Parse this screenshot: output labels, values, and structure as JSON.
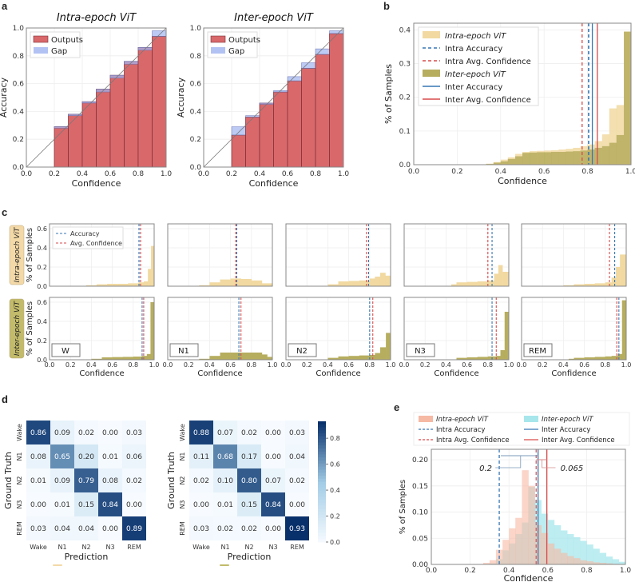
{
  "panels": {
    "a": {
      "letter": "a"
    },
    "b": {
      "letter": "b"
    },
    "c": {
      "letter": "c"
    },
    "d": {
      "letter": "d"
    },
    "e": {
      "letter": "e"
    }
  },
  "colors": {
    "outputs": "#d9686b",
    "gap": "#9fb3f0",
    "intra_fill": "#f1d9a1",
    "inter_fill": "#b6ad5f",
    "blue": "#3777b3",
    "red": "#d94a4a",
    "e_intra": "#f6b9a4",
    "e_inter": "#a7e7ec",
    "tag_intra": "#f3d9a8",
    "tag_inter": "#c2bb6b"
  },
  "chart_data": [
    {
      "id": "a-intra",
      "type": "bar",
      "title": "Intra-epoch ViT",
      "xlabel": "Confidence",
      "ylabel": "Accuracy",
      "xlim": [
        0,
        1
      ],
      "ylim": [
        0,
        1
      ],
      "xticks": [
        "0.0",
        "0.2",
        "0.4",
        "0.6",
        "0.8",
        "1.0"
      ],
      "yticks": [
        "0.0",
        "0.2",
        "0.4",
        "0.6",
        "0.8",
        "1.0"
      ],
      "legend": [
        "Outputs",
        "Gap"
      ],
      "bin_starts": [
        0.2,
        0.3,
        0.4,
        0.5,
        0.6,
        0.7,
        0.8,
        0.9
      ],
      "outputs": [
        0.29,
        0.38,
        0.47,
        0.56,
        0.66,
        0.76,
        0.86,
        0.94
      ],
      "gap_top": [
        0.28,
        0.37,
        0.46,
        0.54,
        0.64,
        0.74,
        0.84,
        0.98
      ],
      "grid": true
    },
    {
      "id": "a-inter",
      "type": "bar",
      "title": "Inter-epoch ViT",
      "xlabel": "Confidence",
      "ylabel": "Accuracy",
      "xlim": [
        0,
        1
      ],
      "ylim": [
        0,
        1
      ],
      "xticks": [
        "0.0",
        "0.2",
        "0.4",
        "0.6",
        "0.8",
        "1.0"
      ],
      "yticks": [
        "0.0",
        "0.2",
        "0.4",
        "0.6",
        "0.8",
        "1.0"
      ],
      "legend": [
        "Outputs",
        "Gap"
      ],
      "bin_starts": [
        0.2,
        0.3,
        0.4,
        0.5,
        0.6,
        0.7,
        0.8,
        0.9
      ],
      "outputs": [
        0.23,
        0.36,
        0.46,
        0.54,
        0.62,
        0.71,
        0.81,
        0.96
      ],
      "gap_top": [
        0.29,
        0.37,
        0.46,
        0.55,
        0.65,
        0.75,
        0.85,
        0.98
      ],
      "grid": true
    },
    {
      "id": "b",
      "type": "bar",
      "xlabel": "Confidence",
      "ylabel": "% of Samples",
      "xlim": [
        0,
        1
      ],
      "ylim": [
        0,
        0.42
      ],
      "xticks": [
        "0.0",
        "0.2",
        "0.4",
        "0.6",
        "0.8",
        "1.0"
      ],
      "yticks": [
        "0.0",
        "0.1",
        "0.2",
        "0.3",
        "0.4"
      ],
      "legend": [
        "Intra-epoch ViT",
        "Intra Accuracy",
        "Intra Avg. Confidence",
        "Inter-epoch ViT",
        "Inter Accuracy",
        "Inter Avg. Confidence"
      ],
      "bin_width": 0.0333,
      "bin_starts": [
        0.333,
        0.367,
        0.4,
        0.433,
        0.467,
        0.5,
        0.533,
        0.567,
        0.6,
        0.633,
        0.667,
        0.7,
        0.733,
        0.767,
        0.8,
        0.833,
        0.867,
        0.9,
        0.933,
        0.967
      ],
      "intra": [
        0.003,
        0.008,
        0.015,
        0.022,
        0.032,
        0.038,
        0.04,
        0.041,
        0.042,
        0.043,
        0.045,
        0.047,
        0.05,
        0.055,
        0.06,
        0.07,
        0.09,
        0.167,
        0.177,
        0.395
      ],
      "inter": [
        0.002,
        0.006,
        0.01,
        0.017,
        0.025,
        0.035,
        0.036,
        0.037,
        0.037,
        0.038,
        0.038,
        0.039,
        0.04,
        0.042,
        0.045,
        0.05,
        0.055,
        0.065,
        0.088,
        0.395
      ],
      "lines": {
        "intra_accuracy": 0.805,
        "intra_avg_conf": 0.775,
        "inter_accuracy": 0.822,
        "inter_avg_conf": 0.845
      },
      "grid": true
    },
    {
      "id": "c",
      "type": "bar",
      "xlabel": "Confidence",
      "ylabel": "% of Samples",
      "row_labels": [
        "Intra-epoch ViT",
        "Inter-epoch ViT"
      ],
      "legend": [
        "Accuracy",
        "Avg. Confidence"
      ],
      "xticks": [
        "0.0",
        "0.2",
        "0.4",
        "0.6",
        "0.8",
        "1.0"
      ],
      "yticks": [
        "0.0",
        "0.2",
        "0.4",
        "0.6"
      ],
      "ylim": [
        0,
        0.65
      ],
      "stages": [
        {
          "name": "W",
          "intra": {
            "acc": 0.855,
            "conf": 0.87,
            "hist": [
              [
                0.35,
                0.01
              ],
              [
                0.45,
                0.02
              ],
              [
                0.55,
                0.025
              ],
              [
                0.65,
                0.025
              ],
              [
                0.75,
                0.03
              ],
              [
                0.85,
                0.04
              ],
              [
                0.9,
                0.05
              ],
              [
                0.94,
                0.18
              ],
              [
                0.97,
                0.42
              ]
            ]
          },
          "inter": {
            "acc": 0.885,
            "conf": 0.9,
            "hist": [
              [
                0.4,
                0.01
              ],
              [
                0.5,
                0.025
              ],
              [
                0.6,
                0.028
              ],
              [
                0.7,
                0.03
              ],
              [
                0.8,
                0.033
              ],
              [
                0.88,
                0.04
              ],
              [
                0.93,
                0.06
              ],
              [
                0.965,
                0.6
              ]
            ]
          }
        },
        {
          "name": "N1",
          "intra": {
            "acc": 0.66,
            "conf": 0.65,
            "hist": [
              [
                0.3,
                0.01
              ],
              [
                0.4,
                0.04
              ],
              [
                0.5,
                0.07
              ],
              [
                0.6,
                0.08
              ],
              [
                0.7,
                0.075
              ],
              [
                0.8,
                0.06
              ],
              [
                0.9,
                0.03
              ]
            ]
          },
          "inter": {
            "acc": 0.68,
            "conf": 0.7,
            "hist": [
              [
                0.3,
                0.01
              ],
              [
                0.4,
                0.04
              ],
              [
                0.5,
                0.075
              ],
              [
                0.6,
                0.075
              ],
              [
                0.7,
                0.075
              ],
              [
                0.8,
                0.075
              ],
              [
                0.9,
                0.055
              ],
              [
                0.95,
                0.03
              ]
            ]
          }
        },
        {
          "name": "N2",
          "intra": {
            "acc": 0.79,
            "conf": 0.77,
            "hist": [
              [
                0.4,
                0.02
              ],
              [
                0.5,
                0.05
              ],
              [
                0.6,
                0.055
              ],
              [
                0.7,
                0.06
              ],
              [
                0.8,
                0.08
              ],
              [
                0.85,
                0.1
              ],
              [
                0.9,
                0.14
              ],
              [
                0.95,
                0.11
              ]
            ]
          },
          "inter": {
            "acc": 0.8,
            "conf": 0.83,
            "hist": [
              [
                0.4,
                0.02
              ],
              [
                0.5,
                0.035
              ],
              [
                0.6,
                0.04
              ],
              [
                0.7,
                0.045
              ],
              [
                0.8,
                0.05
              ],
              [
                0.85,
                0.07
              ],
              [
                0.9,
                0.13
              ],
              [
                0.955,
                0.28
              ]
            ]
          }
        },
        {
          "name": "N3",
          "intra": {
            "acc": 0.84,
            "conf": 0.8,
            "hist": [
              [
                0.45,
                0.02
              ],
              [
                0.5,
                0.04
              ],
              [
                0.6,
                0.045
              ],
              [
                0.7,
                0.05
              ],
              [
                0.8,
                0.06
              ],
              [
                0.86,
                0.13
              ],
              [
                0.9,
                0.22
              ],
              [
                0.94,
                0.15
              ]
            ]
          },
          "inter": {
            "acc": 0.84,
            "conf": 0.88,
            "hist": [
              [
                0.5,
                0.02
              ],
              [
                0.6,
                0.025
              ],
              [
                0.7,
                0.03
              ],
              [
                0.8,
                0.035
              ],
              [
                0.88,
                0.04
              ],
              [
                0.92,
                0.1
              ],
              [
                0.96,
                0.5
              ]
            ]
          }
        },
        {
          "name": "REM",
          "intra": {
            "acc": 0.89,
            "conf": 0.84,
            "hist": [
              [
                0.4,
                0.01
              ],
              [
                0.5,
                0.02
              ],
              [
                0.6,
                0.025
              ],
              [
                0.7,
                0.03
              ],
              [
                0.8,
                0.04
              ],
              [
                0.86,
                0.09
              ],
              [
                0.9,
                0.2
              ],
              [
                0.94,
                0.33
              ]
            ]
          },
          "inter": {
            "acc": 0.93,
            "conf": 0.91,
            "hist": [
              [
                0.45,
                0.01
              ],
              [
                0.5,
                0.02
              ],
              [
                0.6,
                0.025
              ],
              [
                0.7,
                0.03
              ],
              [
                0.8,
                0.035
              ],
              [
                0.86,
                0.04
              ],
              [
                0.92,
                0.06
              ],
              [
                0.96,
                0.62
              ]
            ]
          }
        }
      ]
    },
    {
      "id": "d",
      "type": "heatmap",
      "xlabel": "Prediction",
      "ylabel": "Ground Truth",
      "labels": [
        "Wake",
        "N1",
        "N2",
        "N3",
        "REM"
      ],
      "colorbar_ticks": [
        "0.0",
        "0.2",
        "0.4",
        "0.6",
        "0.8"
      ],
      "matrices": [
        {
          "name": "Intra-epoch ViT",
          "values": [
            [
              0.86,
              0.09,
              0.02,
              0.0,
              0.03
            ],
            [
              0.08,
              0.65,
              0.2,
              0.01,
              0.06
            ],
            [
              0.01,
              0.09,
              0.79,
              0.08,
              0.02
            ],
            [
              0.0,
              0.01,
              0.15,
              0.84,
              0.0
            ],
            [
              0.03,
              0.04,
              0.04,
              0.0,
              0.89
            ]
          ]
        },
        {
          "name": "Inter-epoch ViT",
          "values": [
            [
              0.88,
              0.07,
              0.02,
              0.0,
              0.03
            ],
            [
              0.11,
              0.68,
              0.17,
              0.0,
              0.04
            ],
            [
              0.02,
              0.1,
              0.8,
              0.07,
              0.02
            ],
            [
              0.0,
              0.01,
              0.15,
              0.84,
              0.0
            ],
            [
              0.03,
              0.02,
              0.02,
              0.0,
              0.93
            ]
          ]
        }
      ]
    },
    {
      "id": "e",
      "type": "bar",
      "xlabel": "Confidence",
      "ylabel": "% of Samples",
      "xlim": [
        0,
        1
      ],
      "ylim": [
        0,
        0.22
      ],
      "xticks": [
        "0.0",
        "0.2",
        "0.4",
        "0.6",
        "0.8",
        "1.0"
      ],
      "yticks": [
        "0.00",
        "0.05",
        "0.10",
        "0.15",
        "0.20"
      ],
      "legend": [
        "Intra-epoch ViT",
        "Intra Accuracy",
        "Intra Avg. Confidence",
        "Inter-epoch ViT",
        "Inter Accuracy",
        "Inter Avg. Confidence"
      ],
      "bin_width": 0.0333,
      "bin_starts": [
        0.267,
        0.3,
        0.333,
        0.367,
        0.4,
        0.433,
        0.467,
        0.5,
        0.533,
        0.567,
        0.6,
        0.633,
        0.667,
        0.7,
        0.733,
        0.767,
        0.8,
        0.833,
        0.867,
        0.9,
        0.933,
        0.967
      ],
      "intra": [
        0.003,
        0.008,
        0.028,
        0.047,
        0.069,
        0.089,
        0.18,
        0.15,
        0.075,
        0.06,
        0.04,
        0.03,
        0.022,
        0.016,
        0.012,
        0.008,
        0.006,
        0.004,
        0.003,
        0.002,
        0.001,
        0.0
      ],
      "inter": [
        0.0,
        0.002,
        0.01,
        0.027,
        0.04,
        0.058,
        0.08,
        0.148,
        0.123,
        0.097,
        0.085,
        0.075,
        0.065,
        0.058,
        0.052,
        0.045,
        0.038,
        0.03,
        0.022,
        0.015,
        0.01,
        0.005
      ],
      "lines": {
        "intra_accuracy": 0.35,
        "intra_avg_conf": 0.54,
        "inter_accuracy": 0.55,
        "inter_avg_conf": 0.595
      },
      "annotations": [
        "0.2",
        "0.065"
      ],
      "grid": true
    }
  ]
}
